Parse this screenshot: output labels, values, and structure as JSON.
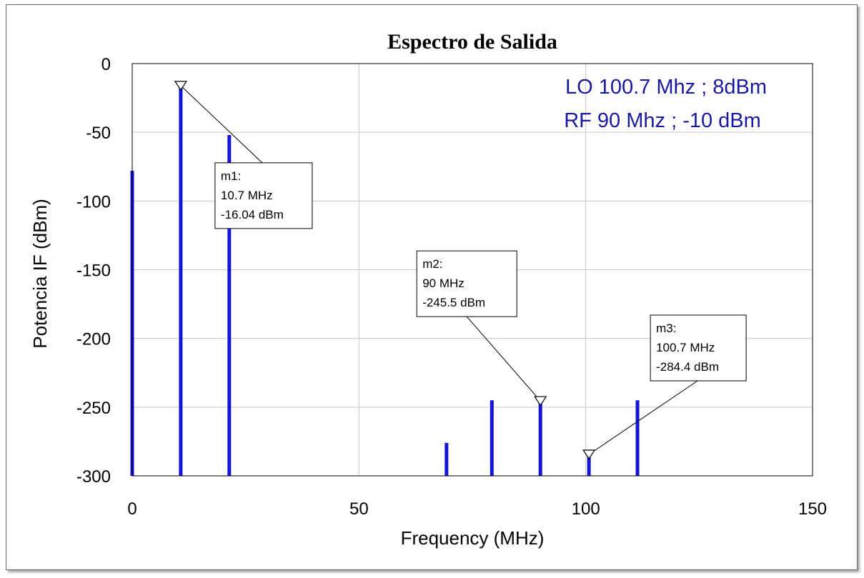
{
  "chart_data": {
    "type": "bar",
    "title": "Espectro de Salida",
    "xlabel": "Frequency (MHz)",
    "ylabel": "Potencia IF (dBm)",
    "xlim": [
      0,
      150
    ],
    "ylim": [
      -300,
      0
    ],
    "grid": true,
    "x_ticks": [
      "0",
      "50",
      "100",
      "150"
    ],
    "y_ticks": [
      "0",
      "-50",
      "-100",
      "-150",
      "-200",
      "-250",
      "-300"
    ],
    "series": [
      {
        "x": [
          0,
          10.7,
          21.4,
          69.3,
          79.3,
          90,
          100.7,
          111.4
        ],
        "values": [
          -78,
          -16.04,
          -52,
          -276,
          -245,
          -245.5,
          -284.4,
          -245
        ]
      }
    ],
    "color": "#1515d6",
    "annotations": [
      "LO 100.7 Mhz ; 8dBm",
      "RF 90 Mhz ; -10 dBm"
    ],
    "markers": [
      {
        "name": "m1:",
        "freq_label": "10.7 MHz",
        "power_label": "-16.04 dBm",
        "x": 10.7,
        "y": -16.04
      },
      {
        "name": "m2:",
        "freq_label": "90 MHz",
        "power_label": "-245.5 dBm",
        "x": 90,
        "y": -245.5
      },
      {
        "name": "m3:",
        "freq_label": "100.7 MHz",
        "power_label": "-284.4 dBm",
        "x": 100.7,
        "y": -284.4
      }
    ]
  }
}
